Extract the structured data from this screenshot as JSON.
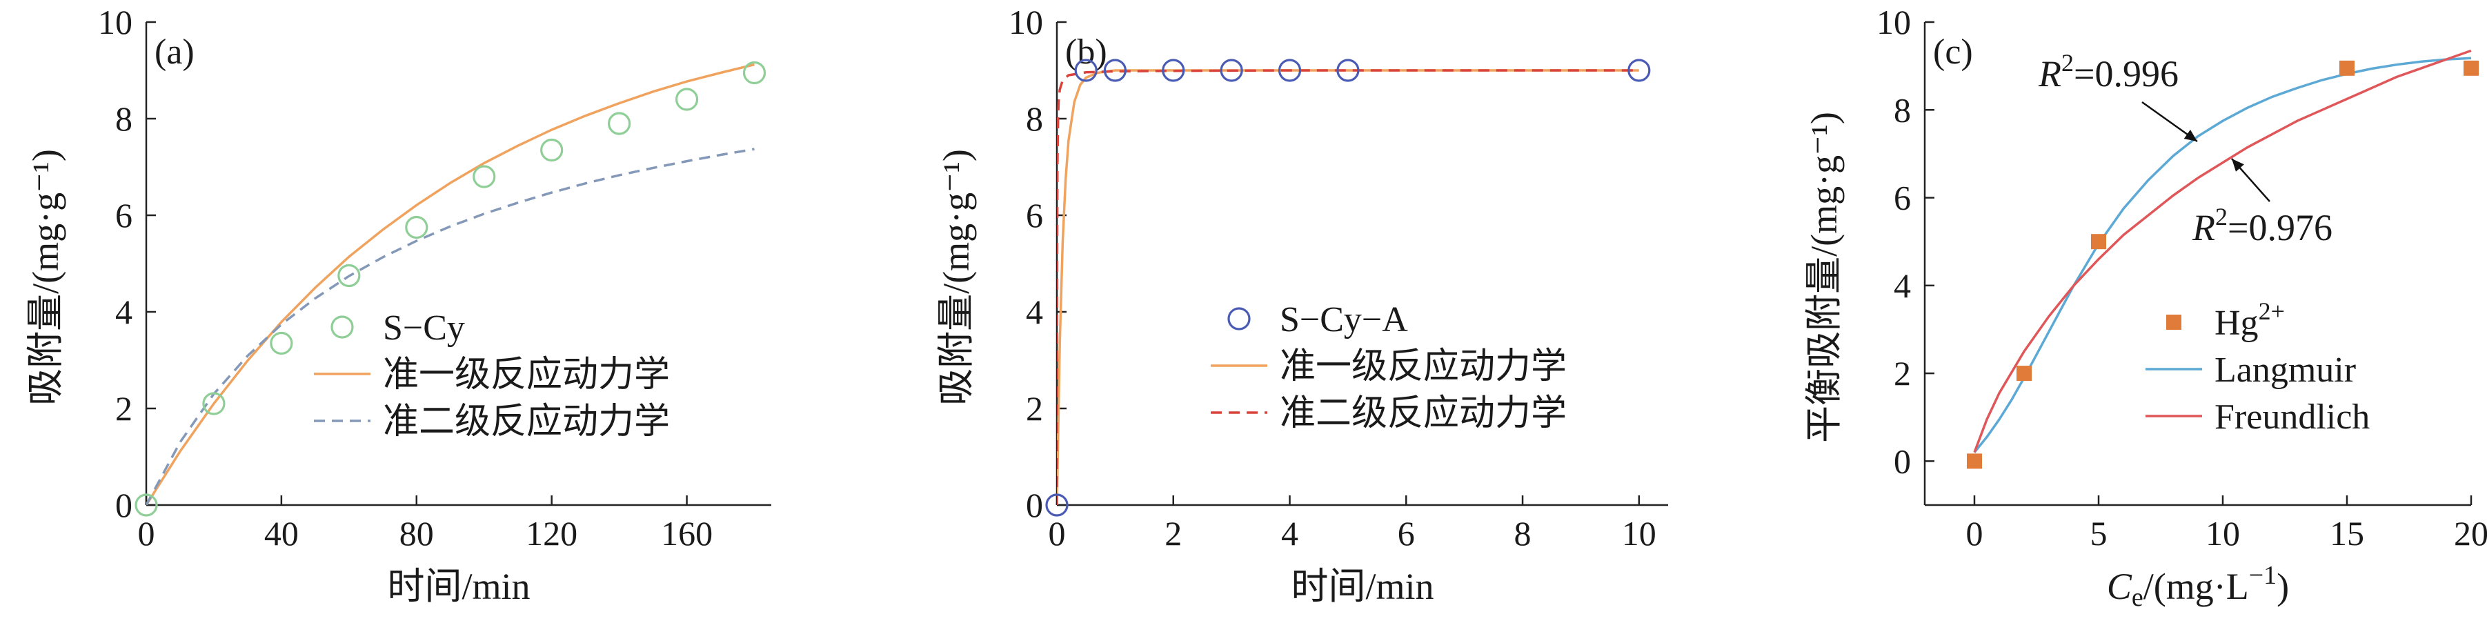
{
  "chart_data": [
    {
      "type": "scatter",
      "panel_label": "(a)",
      "xlabel": "时间/min",
      "ylabel": "吸附量/(mg·g⁻¹)",
      "xlim": [
        0,
        185
      ],
      "ylim": [
        0,
        10
      ],
      "xticks": [
        0,
        40,
        80,
        120,
        160
      ],
      "xtick_labels": [
        "0",
        "40",
        "80",
        "120",
        "160"
      ],
      "yticks": [
        0,
        2,
        4,
        6,
        8,
        10
      ],
      "ytick_labels": [
        "0",
        "2",
        "4",
        "6",
        "8",
        "10"
      ],
      "legend_position": "center-right",
      "series": [
        {
          "name": "S−Cy",
          "kind": "marker",
          "marker": "open-circle",
          "color": "#8fcf97",
          "x": [
            0,
            20,
            40,
            60,
            80,
            100,
            120,
            140,
            160,
            180
          ],
          "y": [
            0,
            2.1,
            3.35,
            4.75,
            5.75,
            6.8,
            7.35,
            7.9,
            8.4,
            8.95
          ]
        },
        {
          "name": "准一级反应动力学",
          "kind": "line",
          "style": "solid",
          "color": "#f0a35e",
          "x": [
            0,
            10,
            20,
            30,
            40,
            50,
            60,
            70,
            80,
            90,
            100,
            110,
            120,
            130,
            140,
            150,
            160,
            170,
            180
          ],
          "y": [
            0,
            1.11,
            2.1,
            2.99,
            3.79,
            4.5,
            5.14,
            5.7,
            6.21,
            6.67,
            7.08,
            7.44,
            7.77,
            8.06,
            8.32,
            8.56,
            8.77,
            8.95,
            9.12
          ]
        },
        {
          "name": "准二级反应动力学",
          "kind": "line",
          "style": "dashed",
          "color": "#8499b8",
          "x": [
            0,
            10,
            20,
            30,
            40,
            50,
            60,
            70,
            80,
            90,
            100,
            110,
            120,
            130,
            140,
            150,
            160,
            170,
            180
          ],
          "y": [
            0,
            1.3,
            2.3,
            3.09,
            3.74,
            4.28,
            4.74,
            5.13,
            5.47,
            5.77,
            6.03,
            6.26,
            6.47,
            6.66,
            6.83,
            6.98,
            7.12,
            7.25,
            7.37
          ]
        }
      ]
    },
    {
      "type": "scatter",
      "panel_label": "(b)",
      "xlabel": "时间/min",
      "ylabel": "吸附量/(mg·g⁻¹)",
      "xlim": [
        0,
        10.5
      ],
      "ylim": [
        0,
        10
      ],
      "xticks": [
        0,
        2,
        4,
        6,
        8,
        10
      ],
      "xtick_labels": [
        "0",
        "2",
        "4",
        "6",
        "8",
        "10"
      ],
      "yticks": [
        0,
        2,
        4,
        6,
        8,
        10
      ],
      "ytick_labels": [
        "0",
        "2",
        "4",
        "6",
        "8",
        "10"
      ],
      "legend_position": "center-right",
      "series": [
        {
          "name": "S−Cy−A",
          "kind": "marker",
          "marker": "open-circle",
          "color": "#4a5bb5",
          "x": [
            0,
            0.5,
            1,
            2,
            3,
            4,
            5,
            10
          ],
          "y": [
            0,
            9.0,
            9.0,
            9.0,
            9.0,
            9.0,
            9.0,
            9.0
          ]
        },
        {
          "name": "准一级反应动力学",
          "kind": "line",
          "style": "solid",
          "color": "#f0a35e",
          "x": [
            0,
            0.05,
            0.1,
            0.15,
            0.2,
            0.3,
            0.4,
            0.5,
            0.7,
            1,
            2,
            4,
            6,
            8,
            10
          ],
          "y": [
            0,
            3.35,
            5.45,
            6.75,
            7.55,
            8.35,
            8.7,
            8.85,
            8.95,
            9.0,
            9.0,
            9.0,
            9.0,
            9.0,
            9.0
          ]
        },
        {
          "name": "准二级反应动力学",
          "kind": "line",
          "style": "dashed",
          "color": "#d9433b",
          "x": [
            0,
            0.005,
            0.01,
            0.02,
            0.03,
            0.05,
            0.1,
            0.2,
            0.5,
            1,
            2,
            4,
            6,
            8,
            10
          ],
          "y": [
            0,
            5.3,
            7.05,
            8.0,
            8.35,
            8.6,
            8.8,
            8.9,
            8.96,
            8.98,
            8.99,
            9.0,
            9.0,
            9.0,
            9.0
          ]
        }
      ]
    },
    {
      "type": "scatter",
      "panel_label": "(c)",
      "xlabel": "Ce/(mg·L−1)",
      "ylabel": "平衡吸附量/(mg·g⁻¹)",
      "xlim": [
        -2,
        20
      ],
      "ylim": [
        -1,
        10
      ],
      "xticks": [
        0,
        5,
        10,
        15,
        20
      ],
      "xtick_labels": [
        "0",
        "5",
        "10",
        "15",
        "20"
      ],
      "yticks": [
        0,
        2,
        4,
        6,
        8,
        10
      ],
      "ytick_labels": [
        "0",
        "2",
        "4",
        "6",
        "8",
        "10"
      ],
      "legend_position": "center-right",
      "annotations": [
        {
          "text": "R2=0.996",
          "points_to": "Langmuir",
          "x": 8.5,
          "y": 7.3
        },
        {
          "text": "R2=0.976",
          "points_to": "Freundlich",
          "x": 10.3,
          "y": 6.9
        }
      ],
      "series": [
        {
          "name": "Hg2+",
          "kind": "marker",
          "marker": "filled-square",
          "color": "#e07b3a",
          "x": [
            0,
            2,
            5,
            15,
            20
          ],
          "y": [
            0,
            2.0,
            5.0,
            8.95,
            8.95
          ]
        },
        {
          "name": "Langmuir",
          "kind": "line",
          "style": "solid",
          "color": "#5da9d6",
          "x": [
            0,
            0.5,
            1,
            1.5,
            2,
            3,
            4,
            5,
            6,
            7,
            8,
            9,
            10,
            11,
            12,
            13,
            14,
            15,
            16,
            17,
            18,
            19,
            20
          ],
          "y": [
            0.2,
            0.55,
            0.95,
            1.4,
            1.9,
            2.95,
            4.0,
            4.95,
            5.75,
            6.4,
            6.95,
            7.4,
            7.75,
            8.05,
            8.3,
            8.5,
            8.68,
            8.82,
            8.94,
            9.03,
            9.1,
            9.15,
            9.18
          ]
        },
        {
          "name": "Freundlich",
          "kind": "line",
          "style": "solid",
          "color": "#e0575a",
          "x": [
            0,
            0.5,
            1,
            2,
            3,
            4,
            5,
            6,
            7,
            8,
            9,
            10,
            11,
            12,
            13,
            14,
            15,
            16,
            17,
            18,
            19,
            20
          ],
          "y": [
            0.2,
            0.95,
            1.55,
            2.5,
            3.3,
            4.0,
            4.6,
            5.15,
            5.6,
            6.05,
            6.45,
            6.8,
            7.15,
            7.45,
            7.75,
            8.0,
            8.25,
            8.5,
            8.75,
            8.95,
            9.15,
            9.35
          ]
        }
      ]
    }
  ]
}
